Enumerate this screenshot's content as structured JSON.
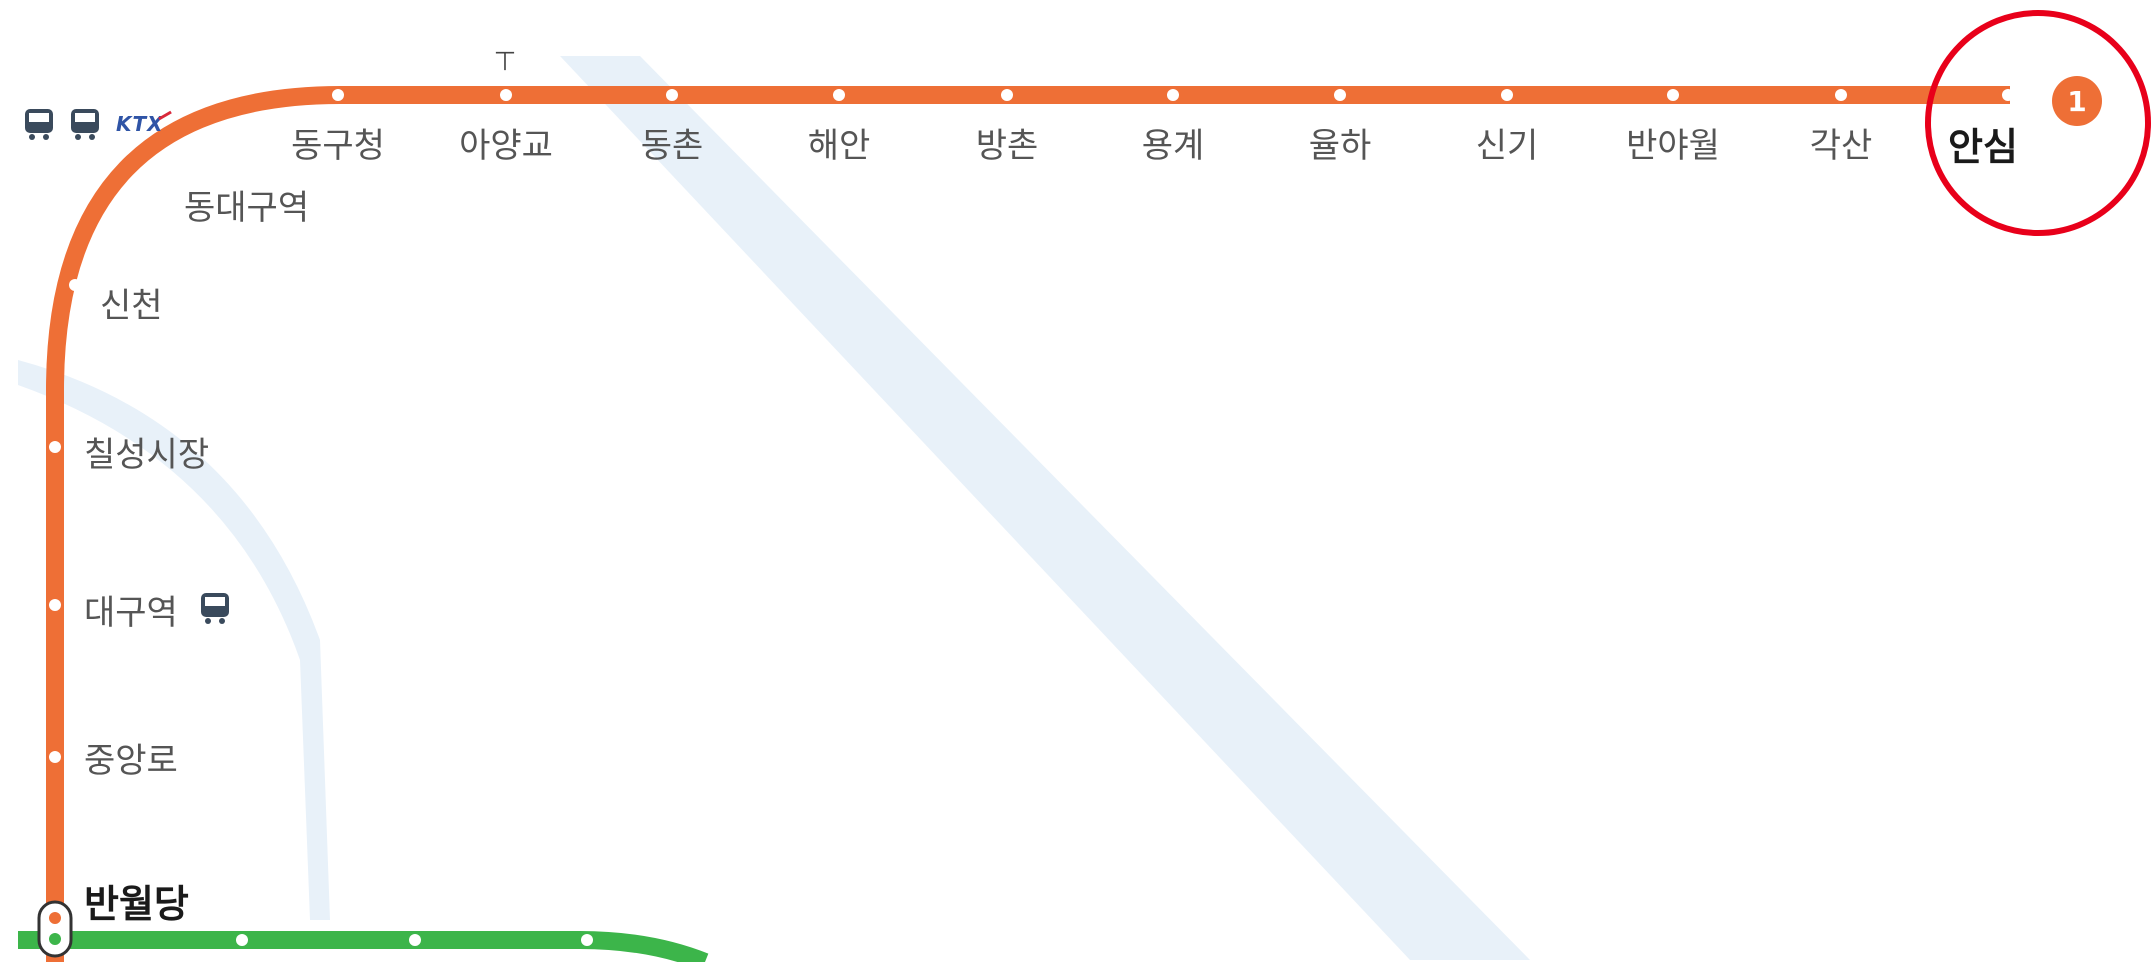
{
  "lines": {
    "line1": {
      "color": "#ee6f36",
      "badge": "1"
    },
    "line2": {
      "color": "#3cb54a"
    },
    "river_color": "#e8f1f9"
  },
  "top_branch": [
    {
      "name": "동구청"
    },
    {
      "name": "아양교"
    },
    {
      "name": "동촌"
    },
    {
      "name": "해안"
    },
    {
      "name": "방촌"
    },
    {
      "name": "용계"
    },
    {
      "name": "율하"
    },
    {
      "name": "신기"
    },
    {
      "name": "반야월"
    },
    {
      "name": "각산"
    },
    {
      "name": "안심",
      "highlight": true
    }
  ],
  "left_branch": [
    {
      "name": "동대구역"
    },
    {
      "name": "신천"
    },
    {
      "name": "칠성시장"
    },
    {
      "name": "대구역"
    },
    {
      "name": "중앙로"
    },
    {
      "name": "반월당",
      "transfer": true
    }
  ],
  "icons": {
    "dongdaegu": [
      "bus-icon",
      "bus-icon",
      "ktx-logo"
    ],
    "daegu": [
      "bus-icon"
    ],
    "ktx_label": "KTX"
  },
  "annotation": {
    "shape": "red-circle",
    "color": "#e8001a",
    "target": "안심"
  }
}
